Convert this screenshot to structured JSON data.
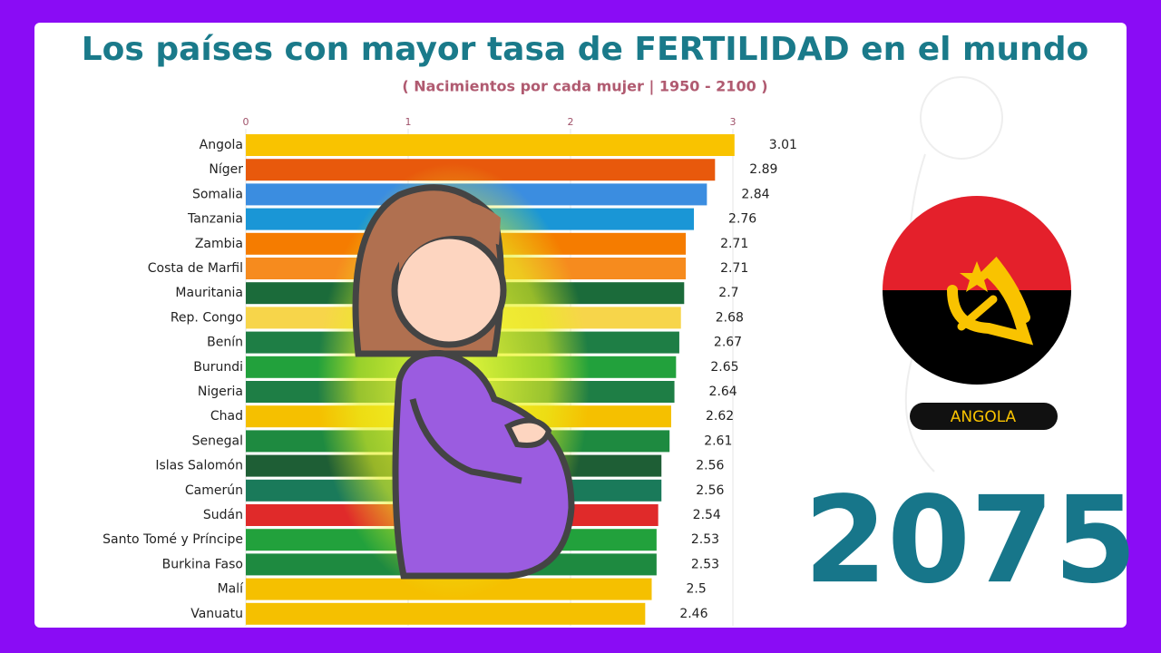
{
  "chart_data": {
    "type": "bar",
    "orientation": "horizontal",
    "title": "Los países con mayor tasa de FERTILIDAD en el mundo",
    "subtitle": "( Nacimientos por cada mujer | 1950 - 2100 )",
    "categories": [
      "Angola",
      "Níger",
      "Somalia",
      "Tanzania",
      "Zambia",
      "Costa de Marfil",
      "Mauritania",
      "Rep. Congo",
      "Benín",
      "Burundi",
      "Nigeria",
      "Chad",
      "Senegal",
      "Islas Salomón",
      "Camerún",
      "Sudán",
      "Santo Tomé y Príncipe",
      "Burkina Faso",
      "Malí",
      "Vanuatu"
    ],
    "values": [
      3.01,
      2.89,
      2.84,
      2.76,
      2.71,
      2.71,
      2.7,
      2.68,
      2.67,
      2.65,
      2.64,
      2.62,
      2.61,
      2.56,
      2.56,
      2.54,
      2.53,
      2.53,
      2.5,
      2.46
    ],
    "colors": [
      "#f9c300",
      "#e8590c",
      "#3b8de0",
      "#1a96d6",
      "#f57c00",
      "#f68b1e",
      "#1b6b3a",
      "#f7d54a",
      "#1e7e45",
      "#22a13c",
      "#1e7e45",
      "#f5c000",
      "#1e8a40",
      "#1e5e35",
      "#1a7a5a",
      "#e02a2a",
      "#22a13c",
      "#1e8a40",
      "#f5c000",
      "#f5c000"
    ],
    "xlim": [
      0,
      3
    ],
    "xticks": [
      0,
      1,
      2,
      3
    ],
    "grid": true,
    "highlight_label": "ANGOLA",
    "year": 2075
  }
}
